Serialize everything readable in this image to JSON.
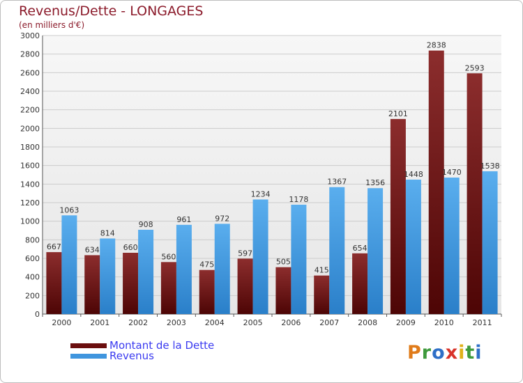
{
  "chart_data": {
    "type": "bar",
    "title": "Revenus/Dette - LONGAGES",
    "subtitle": "(en milliers d'€)",
    "categories": [
      "2000",
      "2001",
      "2002",
      "2003",
      "2004",
      "2005",
      "2006",
      "2007",
      "2008",
      "2009",
      "2010",
      "2011"
    ],
    "series": [
      {
        "name": "Montant de la Dette",
        "color": "#6b0f0f",
        "values": [
          667,
          634,
          660,
          560,
          475,
          597,
          505,
          415,
          654,
          2101,
          2838,
          2593
        ]
      },
      {
        "name": "Revenus",
        "color": "#3f95de",
        "values": [
          1063,
          814,
          908,
          961,
          972,
          1234,
          1178,
          1367,
          1356,
          1448,
          1470,
          1538
        ]
      }
    ],
    "ylim": [
      0,
      3000
    ],
    "yticks": [
      0,
      200,
      400,
      600,
      800,
      1000,
      1200,
      1400,
      1600,
      1800,
      2000,
      2200,
      2400,
      2600,
      2800,
      3000
    ],
    "grid": true,
    "legend": "bottom-left"
  },
  "branding": {
    "logo_letters": [
      "P",
      "r",
      "o",
      "x",
      "i",
      "t",
      "i"
    ]
  },
  "colors": {
    "title": "#8b1a2a",
    "legend_text": "#3a3af0",
    "grid": "#cccccc",
    "axis": "#555555"
  }
}
